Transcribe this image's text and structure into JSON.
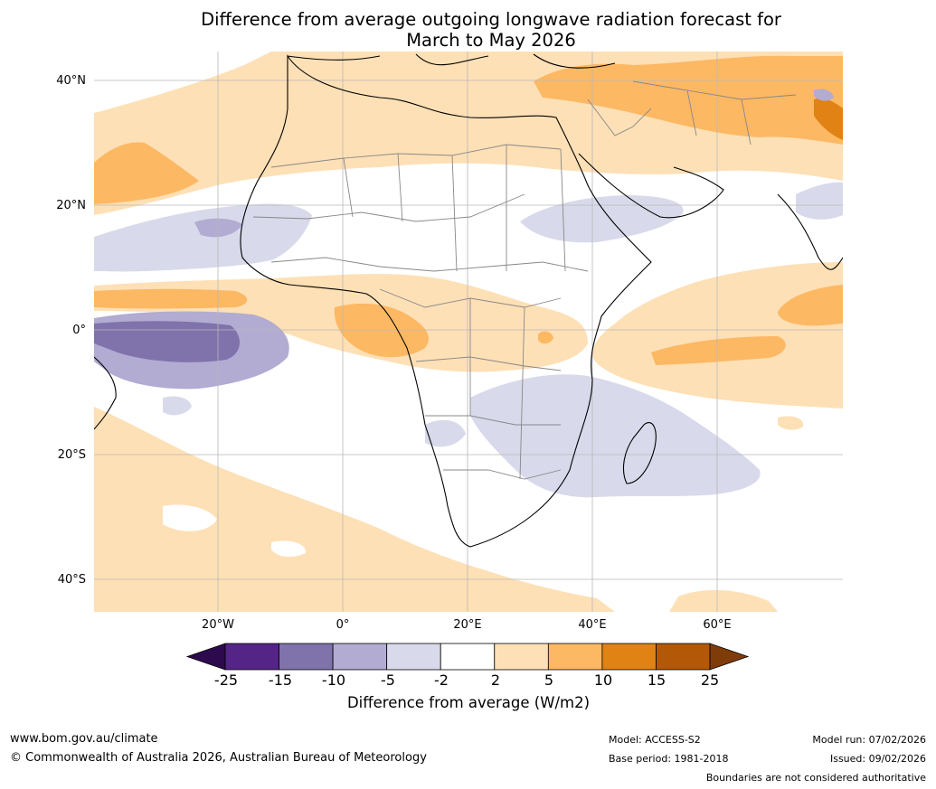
{
  "title_line1": "Difference from average outgoing longwave radiation forecast for",
  "title_line2": "March to May 2026",
  "lat_labels": [
    "40°N",
    "20°N",
    "0°",
    "20°S",
    "40°S"
  ],
  "lon_labels": [
    "20°W",
    "0°",
    "20°E",
    "40°E",
    "60°E"
  ],
  "colorbar": {
    "ticks": [
      "-25",
      "-15",
      "-10",
      "-5",
      "-2",
      "2",
      "5",
      "10",
      "15",
      "25"
    ],
    "colors": [
      "#2d0a4e",
      "#542487",
      "#8073ac",
      "#b2abd2",
      "#d8daeb",
      "#ffffff",
      "#fee0b6",
      "#fdb863",
      "#e08214",
      "#b35806",
      "#7f3b08"
    ],
    "label": "Difference from average (W/m2)"
  },
  "footer": {
    "website": "www.bom.gov.au/climate",
    "copyright": "© Commonwealth of Australia 2026, Australian Bureau of Meteorology",
    "model": "Model: ACCESS-S2",
    "base_period": "Base period: 1981-2018",
    "model_run": "Model run: 07/02/2026",
    "issued": "Issued: 09/02/2026",
    "boundaries_note": "Boundaries are not considered authoritative"
  }
}
